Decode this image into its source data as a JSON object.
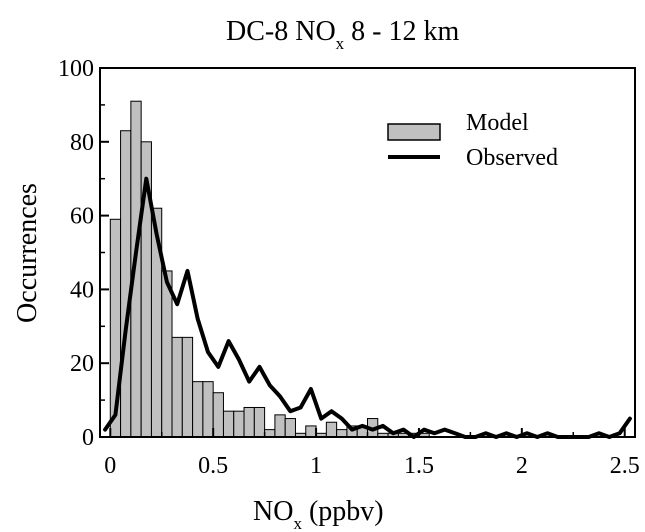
{
  "chart_data": {
    "type": "bar",
    "title": "DC-8 NO",
    "title_subscript": "x",
    "title_suffix": " 8 - 12 km",
    "xlabel": "NO",
    "xlabel_subscript": "x",
    "xlabel_suffix": " (ppbv)",
    "ylabel": "Occurrences",
    "xlim": [
      -0.05,
      2.55
    ],
    "ylim": [
      0,
      100
    ],
    "xticks": [
      0,
      0.5,
      1,
      1.5,
      2,
      2.5
    ],
    "xtick_labels": [
      "0",
      "0.5",
      "1",
      "1.5",
      "2",
      "2.5"
    ],
    "yticks": [
      0,
      20,
      40,
      60,
      80,
      100
    ],
    "ytick_labels": [
      "0",
      "20",
      "40",
      "60",
      "80",
      "100"
    ],
    "grid": false,
    "legend_position": "top-right",
    "bin_width": 0.05,
    "series": [
      {
        "name": "Model",
        "kind": "histogram",
        "color": "#c0c0c0",
        "bins_start": 0,
        "values": [
          59,
          83,
          91,
          80,
          62,
          45,
          27,
          27,
          15,
          15,
          12,
          7,
          7,
          8,
          8,
          2,
          6,
          5,
          1,
          3,
          1,
          4,
          2,
          3,
          3,
          5,
          1,
          1,
          1,
          1,
          1,
          0,
          0,
          0,
          0,
          0,
          0,
          0,
          0,
          0,
          0,
          0,
          0,
          0,
          0,
          0,
          0,
          0,
          0,
          0,
          0
        ]
      },
      {
        "name": "Observed",
        "kind": "line",
        "color": "#000000",
        "x": [
          -0.025,
          0.025,
          0.075,
          0.125,
          0.175,
          0.225,
          0.275,
          0.325,
          0.375,
          0.425,
          0.475,
          0.525,
          0.575,
          0.625,
          0.675,
          0.725,
          0.775,
          0.825,
          0.875,
          0.925,
          0.975,
          1.025,
          1.075,
          1.125,
          1.175,
          1.225,
          1.275,
          1.325,
          1.375,
          1.425,
          1.475,
          1.525,
          1.575,
          1.625,
          1.675,
          1.725,
          1.775,
          1.825,
          1.875,
          1.925,
          1.975,
          2.025,
          2.075,
          2.125,
          2.175,
          2.225,
          2.275,
          2.325,
          2.375,
          2.425,
          2.475,
          2.525
        ],
        "y": [
          2,
          6,
          29,
          50,
          70,
          55,
          42,
          36,
          45,
          32,
          23,
          19,
          26,
          21,
          15,
          19,
          14,
          11,
          7,
          8,
          13,
          5,
          7,
          5,
          2,
          3,
          2,
          3,
          1,
          2,
          0,
          2,
          1,
          2,
          1,
          0,
          0,
          1,
          0,
          1,
          0,
          1,
          0,
          1,
          0,
          0,
          0,
          0,
          1,
          0,
          1,
          5
        ]
      }
    ]
  }
}
